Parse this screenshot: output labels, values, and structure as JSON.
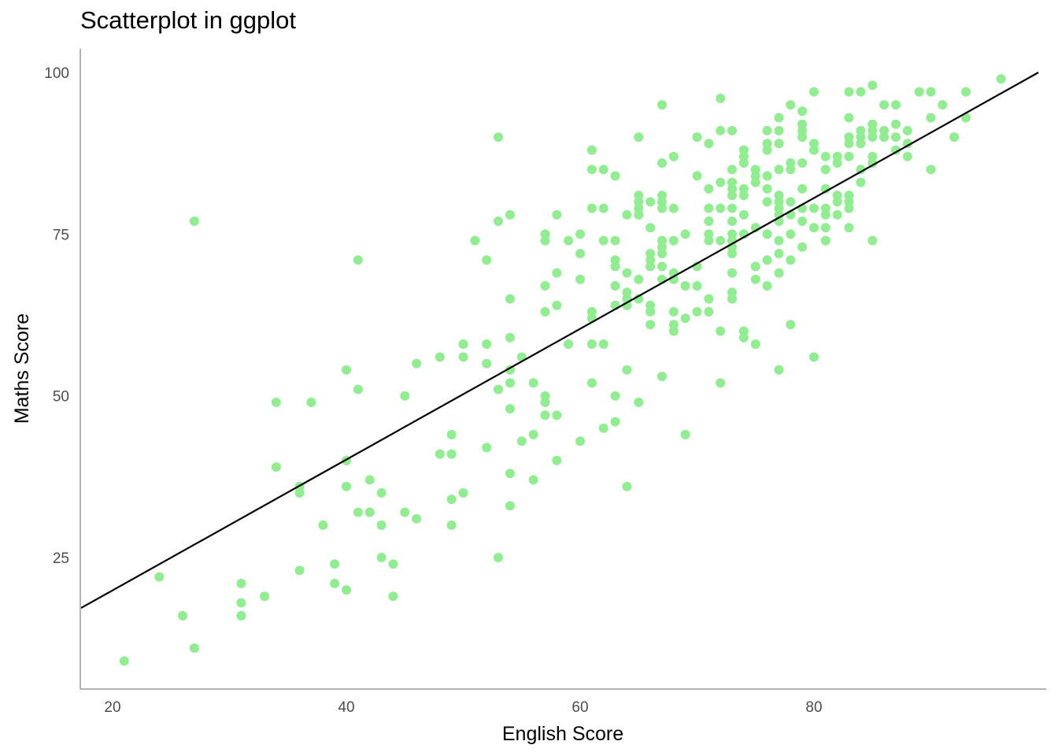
{
  "chart_data": {
    "type": "scatter",
    "title": "Scatterplot in ggplot",
    "xlabel": "English Score",
    "ylabel": "Maths Score",
    "xlim": [
      17,
      99
    ],
    "ylim": [
      7,
      103
    ],
    "xticks": [
      20,
      40,
      60,
      80
    ],
    "yticks": [
      25,
      50,
      75,
      100
    ],
    "grid": false,
    "point_color": "#90ee90",
    "line_color": "#000000",
    "regression_line": {
      "x": [
        17.3,
        99.2
      ],
      "y": [
        17.2,
        100
      ]
    },
    "points": [
      [
        21,
        9
      ],
      [
        24,
        22
      ],
      [
        26,
        16
      ],
      [
        27,
        11
      ],
      [
        27,
        77
      ],
      [
        31,
        16
      ],
      [
        31,
        18
      ],
      [
        31,
        21
      ],
      [
        33,
        19
      ],
      [
        34,
        39
      ],
      [
        34,
        49
      ],
      [
        36,
        23
      ],
      [
        36,
        35
      ],
      [
        36,
        36
      ],
      [
        37,
        49
      ],
      [
        38,
        30
      ],
      [
        39,
        21
      ],
      [
        39,
        24
      ],
      [
        40,
        20
      ],
      [
        40,
        36
      ],
      [
        40,
        40
      ],
      [
        40,
        54
      ],
      [
        41,
        32
      ],
      [
        41,
        51
      ],
      [
        41,
        71
      ],
      [
        42,
        32
      ],
      [
        42,
        37
      ],
      [
        43,
        25
      ],
      [
        43,
        30
      ],
      [
        43,
        35
      ],
      [
        44,
        19
      ],
      [
        44,
        24
      ],
      [
        45,
        32
      ],
      [
        45,
        50
      ],
      [
        46,
        31
      ],
      [
        46,
        55
      ],
      [
        48,
        41
      ],
      [
        48,
        56
      ],
      [
        49,
        30
      ],
      [
        49,
        34
      ],
      [
        49,
        41
      ],
      [
        49,
        44
      ],
      [
        50,
        35
      ],
      [
        50,
        56
      ],
      [
        50,
        58
      ],
      [
        51,
        74
      ],
      [
        52,
        42
      ],
      [
        52,
        55
      ],
      [
        52,
        58
      ],
      [
        52,
        71
      ],
      [
        53,
        25
      ],
      [
        53,
        51
      ],
      [
        53,
        77
      ],
      [
        53,
        90
      ],
      [
        54,
        33
      ],
      [
        54,
        38
      ],
      [
        54,
        48
      ],
      [
        54,
        52
      ],
      [
        54,
        54
      ],
      [
        54,
        59
      ],
      [
        54,
        65
      ],
      [
        54,
        78
      ],
      [
        55,
        43
      ],
      [
        55,
        56
      ],
      [
        56,
        37
      ],
      [
        56,
        44
      ],
      [
        56,
        52
      ],
      [
        57,
        47
      ],
      [
        57,
        49
      ],
      [
        57,
        50
      ],
      [
        57,
        63
      ],
      [
        57,
        67
      ],
      [
        57,
        74
      ],
      [
        57,
        75
      ],
      [
        58,
        40
      ],
      [
        58,
        47
      ],
      [
        58,
        64
      ],
      [
        58,
        69
      ],
      [
        58,
        78
      ],
      [
        59,
        58
      ],
      [
        59,
        74
      ],
      [
        60,
        43
      ],
      [
        60,
        68
      ],
      [
        60,
        72
      ],
      [
        60,
        75
      ],
      [
        61,
        52
      ],
      [
        61,
        58
      ],
      [
        61,
        62
      ],
      [
        61,
        63
      ],
      [
        61,
        79
      ],
      [
        61,
        85
      ],
      [
        61,
        88
      ],
      [
        62,
        45
      ],
      [
        62,
        58
      ],
      [
        62,
        74
      ],
      [
        62,
        79
      ],
      [
        62,
        85
      ],
      [
        63,
        46
      ],
      [
        63,
        50
      ],
      [
        63,
        64
      ],
      [
        63,
        67
      ],
      [
        63,
        70
      ],
      [
        63,
        71
      ],
      [
        63,
        74
      ],
      [
        63,
        84
      ],
      [
        64,
        36
      ],
      [
        64,
        54
      ],
      [
        64,
        64
      ],
      [
        64,
        65
      ],
      [
        64,
        66
      ],
      [
        64,
        69
      ],
      [
        64,
        78
      ],
      [
        65,
        49
      ],
      [
        65,
        65
      ],
      [
        65,
        68
      ],
      [
        65,
        78
      ],
      [
        65,
        79
      ],
      [
        65,
        80
      ],
      [
        65,
        81
      ],
      [
        65,
        90
      ],
      [
        66,
        61
      ],
      [
        66,
        63
      ],
      [
        66,
        64
      ],
      [
        66,
        70
      ],
      [
        66,
        71
      ],
      [
        66,
        72
      ],
      [
        66,
        76
      ],
      [
        66,
        80
      ],
      [
        67,
        53
      ],
      [
        67,
        68
      ],
      [
        67,
        70
      ],
      [
        67,
        72
      ],
      [
        67,
        73
      ],
      [
        67,
        74
      ],
      [
        67,
        79
      ],
      [
        67,
        80
      ],
      [
        67,
        81
      ],
      [
        67,
        86
      ],
      [
        67,
        95
      ],
      [
        68,
        60
      ],
      [
        68,
        61
      ],
      [
        68,
        63
      ],
      [
        68,
        68
      ],
      [
        68,
        69
      ],
      [
        68,
        74
      ],
      [
        68,
        79
      ],
      [
        68,
        87
      ],
      [
        69,
        44
      ],
      [
        69,
        62
      ],
      [
        69,
        67
      ],
      [
        69,
        75
      ],
      [
        70,
        63
      ],
      [
        70,
        67
      ],
      [
        70,
        70
      ],
      [
        70,
        84
      ],
      [
        70,
        90
      ],
      [
        71,
        63
      ],
      [
        71,
        65
      ],
      [
        71,
        74
      ],
      [
        71,
        75
      ],
      [
        71,
        77
      ],
      [
        71,
        79
      ],
      [
        71,
        82
      ],
      [
        71,
        89
      ],
      [
        72,
        52
      ],
      [
        72,
        60
      ],
      [
        72,
        74
      ],
      [
        72,
        79
      ],
      [
        72,
        83
      ],
      [
        72,
        91
      ],
      [
        72,
        96
      ],
      [
        73,
        65
      ],
      [
        73,
        66
      ],
      [
        73,
        69
      ],
      [
        73,
        72
      ],
      [
        73,
        73
      ],
      [
        73,
        74
      ],
      [
        73,
        75
      ],
      [
        73,
        77
      ],
      [
        73,
        79
      ],
      [
        73,
        81
      ],
      [
        73,
        82
      ],
      [
        73,
        83
      ],
      [
        73,
        85
      ],
      [
        73,
        91
      ],
      [
        74,
        59
      ],
      [
        74,
        60
      ],
      [
        74,
        75
      ],
      [
        74,
        78
      ],
      [
        74,
        81
      ],
      [
        74,
        82
      ],
      [
        74,
        86
      ],
      [
        74,
        87
      ],
      [
        74,
        88
      ],
      [
        75,
        58
      ],
      [
        75,
        68
      ],
      [
        75,
        70
      ],
      [
        75,
        76
      ],
      [
        75,
        83
      ],
      [
        75,
        84
      ],
      [
        75,
        85
      ],
      [
        76,
        67
      ],
      [
        76,
        71
      ],
      [
        76,
        75
      ],
      [
        76,
        80
      ],
      [
        76,
        82
      ],
      [
        76,
        84
      ],
      [
        76,
        88
      ],
      [
        76,
        89
      ],
      [
        76,
        91
      ],
      [
        77,
        54
      ],
      [
        77,
        69
      ],
      [
        77,
        72
      ],
      [
        77,
        74
      ],
      [
        77,
        77
      ],
      [
        77,
        78
      ],
      [
        77,
        79
      ],
      [
        77,
        80
      ],
      [
        77,
        81
      ],
      [
        77,
        85
      ],
      [
        77,
        89
      ],
      [
        77,
        91
      ],
      [
        77,
        93
      ],
      [
        78,
        61
      ],
      [
        78,
        71
      ],
      [
        78,
        75
      ],
      [
        78,
        78
      ],
      [
        78,
        80
      ],
      [
        78,
        85
      ],
      [
        78,
        86
      ],
      [
        78,
        95
      ],
      [
        79,
        73
      ],
      [
        79,
        77
      ],
      [
        79,
        79
      ],
      [
        79,
        82
      ],
      [
        79,
        86
      ],
      [
        79,
        90
      ],
      [
        79,
        91
      ],
      [
        79,
        92
      ],
      [
        79,
        94
      ],
      [
        80,
        56
      ],
      [
        80,
        76
      ],
      [
        80,
        79
      ],
      [
        80,
        88
      ],
      [
        80,
        89
      ],
      [
        80,
        97
      ],
      [
        81,
        74
      ],
      [
        81,
        76
      ],
      [
        81,
        78
      ],
      [
        81,
        79
      ],
      [
        81,
        82
      ],
      [
        81,
        85
      ],
      [
        81,
        87
      ],
      [
        82,
        78
      ],
      [
        82,
        80
      ],
      [
        82,
        81
      ],
      [
        82,
        86
      ],
      [
        82,
        87
      ],
      [
        83,
        76
      ],
      [
        83,
        79
      ],
      [
        83,
        80
      ],
      [
        83,
        81
      ],
      [
        83,
        87
      ],
      [
        83,
        89
      ],
      [
        83,
        90
      ],
      [
        83,
        93
      ],
      [
        83,
        97
      ],
      [
        84,
        83
      ],
      [
        84,
        85
      ],
      [
        84,
        89
      ],
      [
        84,
        90
      ],
      [
        84,
        91
      ],
      [
        84,
        97
      ],
      [
        85,
        74
      ],
      [
        85,
        86
      ],
      [
        85,
        87
      ],
      [
        85,
        90
      ],
      [
        85,
        91
      ],
      [
        85,
        92
      ],
      [
        85,
        98
      ],
      [
        86,
        90
      ],
      [
        86,
        91
      ],
      [
        86,
        95
      ],
      [
        87,
        88
      ],
      [
        87,
        90
      ],
      [
        87,
        92
      ],
      [
        87,
        95
      ],
      [
        88,
        87
      ],
      [
        88,
        89
      ],
      [
        88,
        91
      ],
      [
        89,
        97
      ],
      [
        90,
        85
      ],
      [
        90,
        93
      ],
      [
        90,
        97
      ],
      [
        91,
        95
      ],
      [
        92,
        90
      ],
      [
        93,
        93
      ],
      [
        93,
        97
      ],
      [
        96,
        99
      ]
    ]
  }
}
